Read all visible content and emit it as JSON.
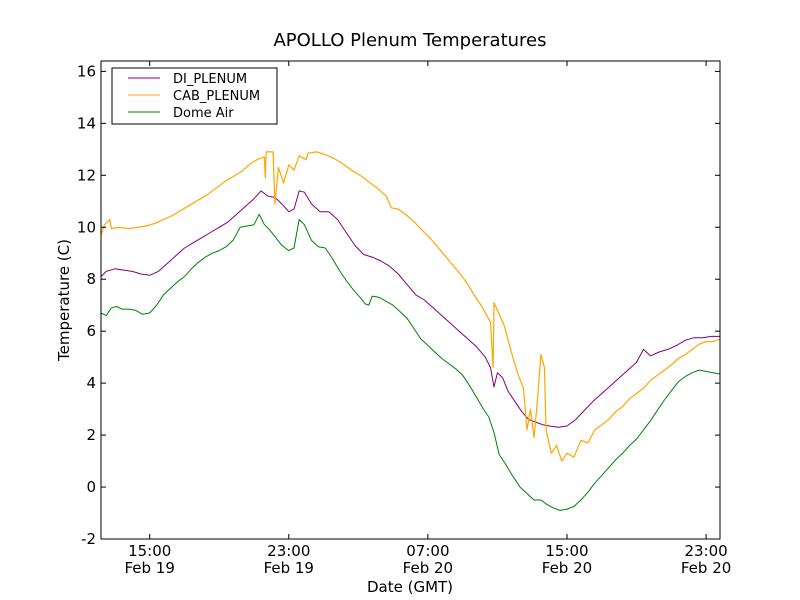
{
  "chart_data": {
    "type": "line",
    "title": "APOLLO Plenum Temperatures",
    "xlabel": "Date (GMT)",
    "ylabel": "Temperature (C)",
    "x_units": "hours since 00:00 Feb 19 (GMT)",
    "xlim": [
      12.2,
      47.8
    ],
    "ylim": [
      -2,
      16.4
    ],
    "grid": false,
    "legend_position": "top-left",
    "yticks": [
      {
        "value": -2,
        "label": "-2"
      },
      {
        "value": 0,
        "label": "0"
      },
      {
        "value": 2,
        "label": "2"
      },
      {
        "value": 4,
        "label": "4"
      },
      {
        "value": 6,
        "label": "6"
      },
      {
        "value": 8,
        "label": "8"
      },
      {
        "value": 10,
        "label": "10"
      },
      {
        "value": 12,
        "label": "12"
      },
      {
        "value": 14,
        "label": "14"
      },
      {
        "value": 16,
        "label": "16"
      }
    ],
    "xticks": [
      {
        "value": 15,
        "time": "15:00",
        "date": "Feb 19"
      },
      {
        "value": 23,
        "time": "23:00",
        "date": "Feb 19"
      },
      {
        "value": 31,
        "time": "07:00",
        "date": "Feb 20"
      },
      {
        "value": 39,
        "time": "15:00",
        "date": "Feb 20"
      },
      {
        "value": 47,
        "time": "23:00",
        "date": "Feb 20"
      }
    ],
    "series": [
      {
        "name": "DI_PLENUM",
        "color": "#800080",
        "points": [
          [
            12.2,
            8.1
          ],
          [
            12.5,
            8.3
          ],
          [
            13.0,
            8.4
          ],
          [
            13.5,
            8.35
          ],
          [
            14.0,
            8.3
          ],
          [
            14.5,
            8.2
          ],
          [
            15.0,
            8.15
          ],
          [
            15.5,
            8.3
          ],
          [
            16.0,
            8.6
          ],
          [
            16.5,
            8.9
          ],
          [
            17.0,
            9.2
          ],
          [
            17.5,
            9.4
          ],
          [
            18.0,
            9.6
          ],
          [
            18.5,
            9.8
          ],
          [
            19.0,
            10.0
          ],
          [
            19.5,
            10.2
          ],
          [
            20.0,
            10.5
          ],
          [
            20.5,
            10.8
          ],
          [
            21.0,
            11.1
          ],
          [
            21.4,
            11.4
          ],
          [
            21.8,
            11.2
          ],
          [
            22.2,
            11.15
          ],
          [
            22.6,
            10.9
          ],
          [
            23.0,
            10.6
          ],
          [
            23.3,
            10.7
          ],
          [
            23.6,
            11.4
          ],
          [
            23.9,
            11.35
          ],
          [
            24.3,
            10.9
          ],
          [
            24.8,
            10.6
          ],
          [
            25.3,
            10.6
          ],
          [
            25.8,
            10.3
          ],
          [
            26.3,
            9.8
          ],
          [
            26.8,
            9.3
          ],
          [
            27.3,
            8.95
          ],
          [
            27.8,
            8.85
          ],
          [
            28.3,
            8.7
          ],
          [
            28.8,
            8.5
          ],
          [
            29.3,
            8.2
          ],
          [
            29.8,
            7.8
          ],
          [
            30.3,
            7.4
          ],
          [
            30.8,
            7.2
          ],
          [
            31.3,
            6.9
          ],
          [
            31.8,
            6.6
          ],
          [
            32.3,
            6.3
          ],
          [
            32.8,
            6.0
          ],
          [
            33.3,
            5.7
          ],
          [
            33.8,
            5.4
          ],
          [
            34.3,
            5.0
          ],
          [
            34.6,
            4.6
          ],
          [
            34.8,
            3.85
          ],
          [
            35.0,
            4.4
          ],
          [
            35.3,
            4.2
          ],
          [
            35.6,
            3.7
          ],
          [
            36.0,
            3.3
          ],
          [
            36.4,
            2.9
          ],
          [
            36.8,
            2.6
          ],
          [
            37.2,
            2.5
          ],
          [
            37.6,
            2.4
          ],
          [
            38.0,
            2.35
          ],
          [
            38.5,
            2.3
          ],
          [
            39.0,
            2.35
          ],
          [
            39.5,
            2.6
          ],
          [
            40.0,
            2.95
          ],
          [
            40.5,
            3.3
          ],
          [
            41.0,
            3.6
          ],
          [
            41.5,
            3.9
          ],
          [
            42.0,
            4.2
          ],
          [
            42.5,
            4.5
          ],
          [
            43.0,
            4.8
          ],
          [
            43.4,
            5.3
          ],
          [
            43.8,
            5.05
          ],
          [
            44.3,
            5.2
          ],
          [
            44.8,
            5.3
          ],
          [
            45.3,
            5.45
          ],
          [
            45.8,
            5.65
          ],
          [
            46.3,
            5.75
          ],
          [
            46.8,
            5.75
          ],
          [
            47.3,
            5.8
          ],
          [
            47.8,
            5.8
          ]
        ]
      },
      {
        "name": "CAB_PLENUM",
        "color": "#ffa500",
        "points": [
          [
            12.2,
            9.7
          ],
          [
            12.4,
            10.1
          ],
          [
            12.7,
            10.3
          ],
          [
            12.8,
            9.95
          ],
          [
            13.2,
            10.0
          ],
          [
            13.8,
            9.95
          ],
          [
            14.3,
            10.0
          ],
          [
            14.8,
            10.05
          ],
          [
            15.3,
            10.15
          ],
          [
            15.8,
            10.3
          ],
          [
            16.3,
            10.45
          ],
          [
            16.8,
            10.65
          ],
          [
            17.3,
            10.85
          ],
          [
            17.8,
            11.05
          ],
          [
            18.3,
            11.25
          ],
          [
            18.8,
            11.5
          ],
          [
            19.3,
            11.75
          ],
          [
            19.8,
            11.95
          ],
          [
            20.3,
            12.15
          ],
          [
            20.8,
            12.45
          ],
          [
            21.3,
            12.65
          ],
          [
            21.6,
            12.7
          ],
          [
            21.65,
            11.9
          ],
          [
            21.7,
            12.9
          ],
          [
            22.1,
            12.9
          ],
          [
            22.2,
            10.9
          ],
          [
            22.4,
            12.3
          ],
          [
            22.7,
            11.7
          ],
          [
            23.0,
            12.4
          ],
          [
            23.3,
            12.2
          ],
          [
            23.6,
            12.75
          ],
          [
            24.0,
            12.6
          ],
          [
            24.1,
            12.85
          ],
          [
            24.6,
            12.9
          ],
          [
            25.1,
            12.8
          ],
          [
            25.6,
            12.65
          ],
          [
            26.1,
            12.45
          ],
          [
            26.6,
            12.2
          ],
          [
            27.1,
            12.0
          ],
          [
            27.6,
            11.75
          ],
          [
            28.1,
            11.5
          ],
          [
            28.6,
            11.2
          ],
          [
            28.9,
            10.75
          ],
          [
            29.3,
            10.7
          ],
          [
            29.8,
            10.45
          ],
          [
            30.3,
            10.15
          ],
          [
            30.8,
            9.8
          ],
          [
            31.3,
            9.45
          ],
          [
            31.8,
            9.05
          ],
          [
            32.3,
            8.65
          ],
          [
            32.8,
            8.25
          ],
          [
            33.3,
            7.8
          ],
          [
            33.7,
            7.35
          ],
          [
            34.1,
            6.95
          ],
          [
            34.6,
            6.35
          ],
          [
            34.75,
            4.6
          ],
          [
            34.8,
            7.1
          ],
          [
            35.1,
            6.65
          ],
          [
            35.4,
            6.2
          ],
          [
            35.8,
            5.2
          ],
          [
            36.2,
            4.3
          ],
          [
            36.5,
            3.8
          ],
          [
            36.7,
            2.2
          ],
          [
            36.9,
            3.0
          ],
          [
            37.1,
            1.9
          ],
          [
            37.3,
            3.3
          ],
          [
            37.5,
            5.1
          ],
          [
            37.7,
            4.6
          ],
          [
            37.8,
            2.2
          ],
          [
            38.1,
            1.3
          ],
          [
            38.4,
            1.6
          ],
          [
            38.7,
            1.0
          ],
          [
            39.0,
            1.3
          ],
          [
            39.4,
            1.15
          ],
          [
            39.8,
            1.8
          ],
          [
            40.2,
            1.7
          ],
          [
            40.6,
            2.2
          ],
          [
            41.0,
            2.4
          ],
          [
            41.4,
            2.6
          ],
          [
            41.8,
            2.9
          ],
          [
            42.2,
            3.1
          ],
          [
            42.6,
            3.4
          ],
          [
            43.0,
            3.6
          ],
          [
            43.4,
            3.8
          ],
          [
            43.8,
            4.1
          ],
          [
            44.2,
            4.3
          ],
          [
            44.6,
            4.5
          ],
          [
            45.0,
            4.7
          ],
          [
            45.4,
            4.95
          ],
          [
            45.8,
            5.1
          ],
          [
            46.2,
            5.3
          ],
          [
            46.6,
            5.5
          ],
          [
            47.0,
            5.6
          ],
          [
            47.4,
            5.6
          ],
          [
            47.8,
            5.7
          ]
        ]
      },
      {
        "name": "Dome Air",
        "color": "#008000",
        "points": [
          [
            12.2,
            6.7
          ],
          [
            12.5,
            6.6
          ],
          [
            12.8,
            6.9
          ],
          [
            13.1,
            6.95
          ],
          [
            13.4,
            6.85
          ],
          [
            13.8,
            6.85
          ],
          [
            14.2,
            6.8
          ],
          [
            14.6,
            6.65
          ],
          [
            15.0,
            6.7
          ],
          [
            15.4,
            7.0
          ],
          [
            15.8,
            7.4
          ],
          [
            16.2,
            7.65
          ],
          [
            16.6,
            7.9
          ],
          [
            17.0,
            8.1
          ],
          [
            17.4,
            8.4
          ],
          [
            17.8,
            8.65
          ],
          [
            18.2,
            8.85
          ],
          [
            18.6,
            9.0
          ],
          [
            19.0,
            9.1
          ],
          [
            19.4,
            9.25
          ],
          [
            19.8,
            9.5
          ],
          [
            20.2,
            10.0
          ],
          [
            20.6,
            10.05
          ],
          [
            21.0,
            10.1
          ],
          [
            21.3,
            10.5
          ],
          [
            21.6,
            10.1
          ],
          [
            21.9,
            9.9
          ],
          [
            22.2,
            9.65
          ],
          [
            22.6,
            9.3
          ],
          [
            23.0,
            9.1
          ],
          [
            23.3,
            9.2
          ],
          [
            23.6,
            10.3
          ],
          [
            23.9,
            10.1
          ],
          [
            24.3,
            9.5
          ],
          [
            24.7,
            9.25
          ],
          [
            25.1,
            9.2
          ],
          [
            25.5,
            8.8
          ],
          [
            25.9,
            8.35
          ],
          [
            26.3,
            7.95
          ],
          [
            26.7,
            7.6
          ],
          [
            27.1,
            7.3
          ],
          [
            27.4,
            7.05
          ],
          [
            27.6,
            7.0
          ],
          [
            27.8,
            7.35
          ],
          [
            28.2,
            7.3
          ],
          [
            28.6,
            7.15
          ],
          [
            29.0,
            7.0
          ],
          [
            29.4,
            6.75
          ],
          [
            29.8,
            6.5
          ],
          [
            30.2,
            6.1
          ],
          [
            30.6,
            5.7
          ],
          [
            31.0,
            5.45
          ],
          [
            31.4,
            5.2
          ],
          [
            31.8,
            4.95
          ],
          [
            32.2,
            4.75
          ],
          [
            32.6,
            4.55
          ],
          [
            33.0,
            4.3
          ],
          [
            33.4,
            3.9
          ],
          [
            33.8,
            3.45
          ],
          [
            34.2,
            3.0
          ],
          [
            34.5,
            2.7
          ],
          [
            34.8,
            2.1
          ],
          [
            35.1,
            1.25
          ],
          [
            35.5,
            0.85
          ],
          [
            35.9,
            0.4
          ],
          [
            36.3,
            0.0
          ],
          [
            36.7,
            -0.25
          ],
          [
            37.1,
            -0.5
          ],
          [
            37.5,
            -0.5
          ],
          [
            37.8,
            -0.65
          ],
          [
            38.2,
            -0.8
          ],
          [
            38.6,
            -0.9
          ],
          [
            39.0,
            -0.85
          ],
          [
            39.4,
            -0.75
          ],
          [
            39.8,
            -0.5
          ],
          [
            40.2,
            -0.2
          ],
          [
            40.6,
            0.15
          ],
          [
            41.0,
            0.45
          ],
          [
            41.4,
            0.75
          ],
          [
            41.8,
            1.05
          ],
          [
            42.2,
            1.3
          ],
          [
            42.6,
            1.6
          ],
          [
            43.0,
            1.85
          ],
          [
            43.4,
            2.2
          ],
          [
            43.8,
            2.55
          ],
          [
            44.2,
            2.95
          ],
          [
            44.6,
            3.35
          ],
          [
            45.0,
            3.7
          ],
          [
            45.4,
            4.05
          ],
          [
            45.8,
            4.25
          ],
          [
            46.2,
            4.4
          ],
          [
            46.6,
            4.5
          ],
          [
            47.0,
            4.45
          ],
          [
            47.4,
            4.4
          ],
          [
            47.8,
            4.35
          ]
        ]
      }
    ]
  }
}
